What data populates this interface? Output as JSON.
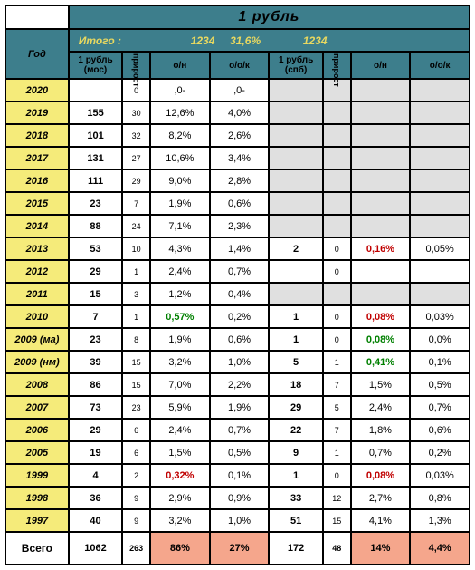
{
  "title": "1 рубль",
  "summaryLabel": "Итого :",
  "summaryVals": [
    "1234",
    "31,6%",
    "1234"
  ],
  "hdr": {
    "year": "Год",
    "r_mos": "1 рубль (мос)",
    "incr": "прирост",
    "on": "о/н",
    "ook": "о/о/к",
    "r_spb": "1 рубль (спб)"
  },
  "rows": [
    {
      "y": "2020",
      "m": "",
      "mi": "0",
      "on": ",0-",
      "ok": ",0-",
      "s": "",
      "si": "",
      "son": "",
      "sok": ""
    },
    {
      "y": "2019",
      "m": "155",
      "mi": "30",
      "on": "12,6%",
      "ok": "4,0%",
      "s": "",
      "si": "",
      "son": "",
      "sok": ""
    },
    {
      "y": "2018",
      "m": "101",
      "mi": "32",
      "on": "8,2%",
      "ok": "2,6%",
      "s": "",
      "si": "",
      "son": "",
      "sok": ""
    },
    {
      "y": "2017",
      "m": "131",
      "mi": "27",
      "on": "10,6%",
      "ok": "3,4%",
      "s": "",
      "si": "",
      "son": "",
      "sok": ""
    },
    {
      "y": "2016",
      "m": "111",
      "mi": "29",
      "on": "9,0%",
      "ok": "2,8%",
      "s": "",
      "si": "",
      "son": "",
      "sok": ""
    },
    {
      "y": "2015",
      "m": "23",
      "mi": "7",
      "on": "1,9%",
      "ok": "0,6%",
      "s": "",
      "si": "",
      "son": "",
      "sok": ""
    },
    {
      "y": "2014",
      "m": "88",
      "mi": "24",
      "on": "7,1%",
      "ok": "2,3%",
      "s": "",
      "si": "",
      "son": "",
      "sok": ""
    },
    {
      "y": "2013",
      "m": "53",
      "mi": "10",
      "on": "4,3%",
      "ok": "1,4%",
      "s": "2",
      "si": "0",
      "son": "0,16%",
      "sonc": "red",
      "sok": "0,05%"
    },
    {
      "y": "2012",
      "m": "29",
      "mi": "1",
      "on": "2,4%",
      "ok": "0,7%",
      "s": "",
      "si": "0",
      "son": "",
      "sok": ""
    },
    {
      "y": "2011",
      "m": "15",
      "mi": "3",
      "on": "1,2%",
      "ok": "0,4%",
      "s": "",
      "si": "",
      "son": "",
      "sok": ""
    },
    {
      "y": "2010",
      "m": "7",
      "mi": "1",
      "on": "0,57%",
      "onc": "green",
      "ok": "0,2%",
      "s": "1",
      "si": "0",
      "son": "0,08%",
      "sonc": "red",
      "sok": "0,03%"
    },
    {
      "y": "2009 (ма)",
      "m": "23",
      "mi": "8",
      "on": "1,9%",
      "ok": "0,6%",
      "s": "1",
      "si": "0",
      "son": "0,08%",
      "sonc": "green",
      "sok": "0,0%"
    },
    {
      "y": "2009 (нм)",
      "m": "39",
      "mi": "15",
      "on": "3,2%",
      "ok": "1,0%",
      "s": "5",
      "si": "1",
      "son": "0,41%",
      "sonc": "green",
      "sok": "0,1%"
    },
    {
      "y": "2008",
      "m": "86",
      "mi": "15",
      "on": "7,0%",
      "ok": "2,2%",
      "s": "18",
      "si": "7",
      "son": "1,5%",
      "sok": "0,5%"
    },
    {
      "y": "2007",
      "m": "73",
      "mi": "23",
      "on": "5,9%",
      "ok": "1,9%",
      "s": "29",
      "si": "5",
      "son": "2,4%",
      "sok": "0,7%"
    },
    {
      "y": "2006",
      "m": "29",
      "mi": "6",
      "on": "2,4%",
      "ok": "0,7%",
      "s": "22",
      "si": "7",
      "son": "1,8%",
      "sok": "0,6%"
    },
    {
      "y": "2005",
      "m": "19",
      "mi": "6",
      "on": "1,5%",
      "ok": "0,5%",
      "s": "9",
      "si": "1",
      "son": "0,7%",
      "sok": "0,2%"
    },
    {
      "y": "1999",
      "m": "4",
      "mi": "2",
      "on": "0,32%",
      "onc": "red",
      "ok": "0,1%",
      "s": "1",
      "si": "0",
      "son": "0,08%",
      "sonc": "red",
      "sok": "0,03%"
    },
    {
      "y": "1998",
      "m": "36",
      "mi": "9",
      "on": "2,9%",
      "ok": "0,9%",
      "s": "33",
      "si": "12",
      "son": "2,7%",
      "sok": "0,8%"
    },
    {
      "y": "1997",
      "m": "40",
      "mi": "9",
      "on": "3,2%",
      "ok": "1,0%",
      "s": "51",
      "si": "15",
      "son": "4,1%",
      "sok": "1,3%"
    }
  ],
  "tot": {
    "label": "Всего",
    "m": "1062",
    "mi": "263",
    "on": "86%",
    "ok": "27%",
    "s": "172",
    "si": "48",
    "son": "14%",
    "sok": "4,4%"
  }
}
